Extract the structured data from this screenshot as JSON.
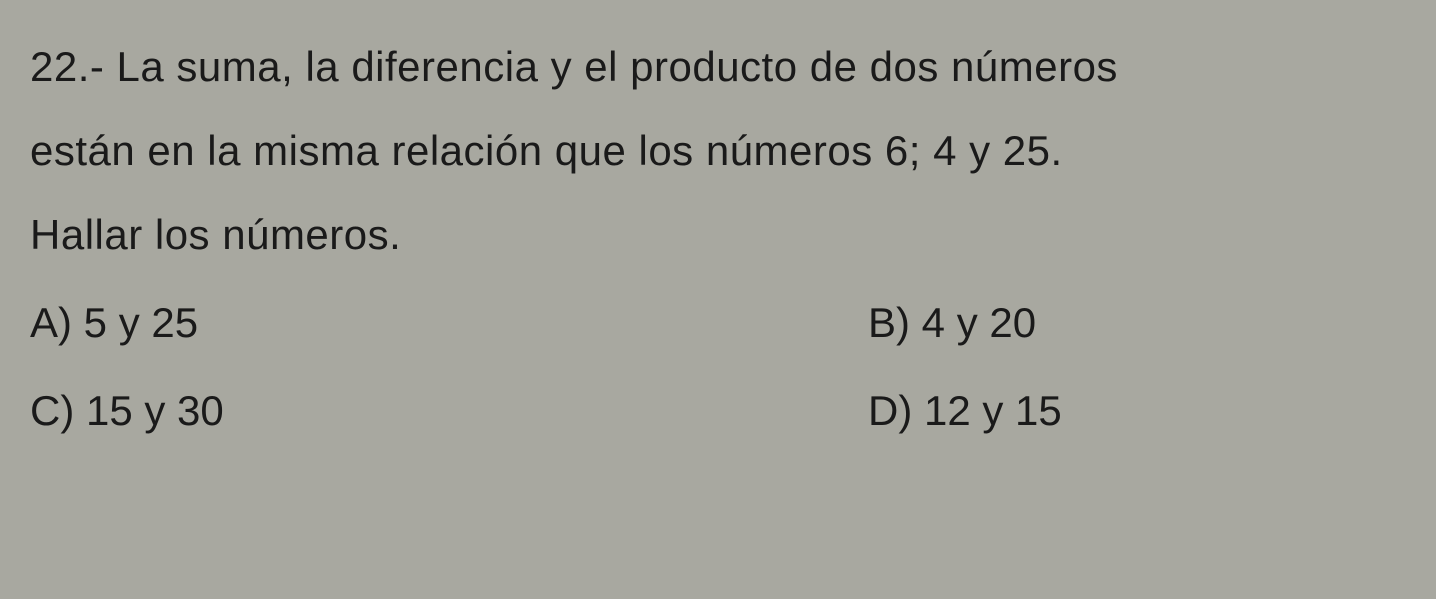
{
  "question": {
    "number": "22.-",
    "text_line1": "22.- La suma, la diferencia y el producto de dos números",
    "text_line2": "están en la misma relación que los números 6; 4 y 25.",
    "text_line3": "Hallar los números."
  },
  "options": {
    "a": {
      "label": "A)",
      "text": "5 y 25"
    },
    "b": {
      "label": "B)",
      "text": "4 y 20"
    },
    "c": {
      "label": "C)",
      "text": "15 y 30"
    },
    "d": {
      "label": "D)",
      "text": "12 y 15"
    }
  },
  "styling": {
    "background_color": "#a8a8a0",
    "text_color": "#1a1a1a",
    "font_family": "Arial",
    "font_size_pt": 32,
    "font_weight": 500,
    "line_height": 2.0
  }
}
